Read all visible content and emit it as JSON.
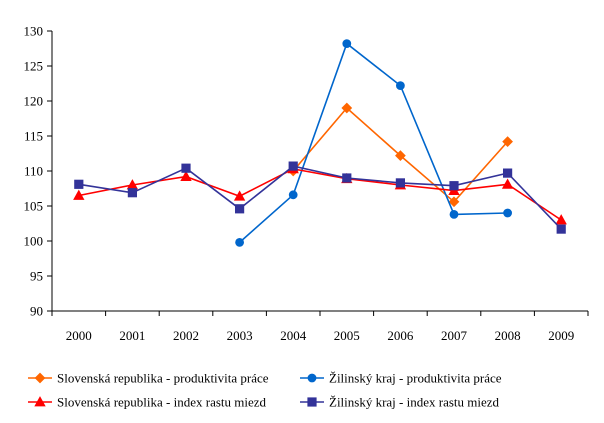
{
  "chart_data": {
    "type": "line",
    "title": "",
    "xlabel": "",
    "ylabel": "",
    "categories": [
      "2000",
      "2001",
      "2002",
      "2003",
      "2004",
      "2005",
      "2006",
      "2007",
      "2008",
      "2009"
    ],
    "ylim": [
      90,
      130
    ],
    "yticks": [
      "90",
      "95",
      "100",
      "105",
      "110",
      "115",
      "120",
      "125",
      "130"
    ],
    "grid": false,
    "legend_position": "bottom",
    "series": [
      {
        "name": "Slovenská republika - produktivita práce",
        "color": "#ff6600",
        "marker": "diamond",
        "values": [
          null,
          null,
          null,
          null,
          110.0,
          119.0,
          112.2,
          105.6,
          114.2,
          null
        ]
      },
      {
        "name": "Žilinský kraj - produktivita práce",
        "color": "#0066cc",
        "marker": "circle",
        "values": [
          null,
          null,
          null,
          99.8,
          106.6,
          128.2,
          122.2,
          103.8,
          104.0,
          null
        ]
      },
      {
        "name": "Slovenská republika - index rastu miezd",
        "color": "#ff0000",
        "marker": "triangle",
        "values": [
          106.5,
          108.0,
          109.2,
          106.4,
          110.3,
          108.9,
          108.0,
          107.2,
          108.1,
          103.0
        ]
      },
      {
        "name": "Žilinský kraj - index rastu miezd",
        "color": "#333399",
        "marker": "square",
        "values": [
          108.1,
          106.9,
          110.4,
          104.6,
          110.7,
          109.0,
          108.3,
          107.9,
          109.7,
          101.7
        ]
      }
    ]
  }
}
